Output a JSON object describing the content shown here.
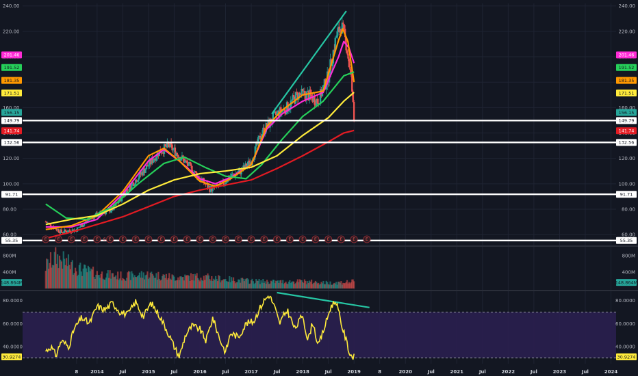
{
  "colors": {
    "background": "#131722",
    "grid": "#1f2433",
    "candle_up": "#26a69a",
    "candle_down": "#ef5350",
    "ma_magenta": "#ff2bd6",
    "ma_orange": "#ff9800",
    "ma_green": "#26d05a",
    "ma_yellow": "#ffeb3b",
    "ma_red": "#e31b23",
    "trendline": "#26c6a4",
    "hline": "#ffffff",
    "rsi_line": "#ffeb3b",
    "rsi_band": "#2a1f4f"
  },
  "chart_data": [
    {
      "type": "candlestick",
      "name": "price",
      "y_ticks": [
        "240.00",
        "220.00",
        "200.00",
        "180.00",
        "160.00",
        "140.00",
        "120.00",
        "100.00",
        "80.00",
        "60.00"
      ],
      "ylim": [
        52,
        242
      ],
      "grid": true,
      "x_ticks": [
        "8",
        "2014",
        "Jul",
        "2015",
        "Jul",
        "2016",
        "Jul",
        "2017",
        "Jul",
        "2018",
        "Jul",
        "2019",
        "8",
        "2020",
        "Jul",
        "2021",
        "Jul",
        "2022",
        "Jul",
        "2023",
        "Jul",
        "2024"
      ],
      "close_anchors": [
        [
          2013.0,
          70
        ],
        [
          2013.3,
          62
        ],
        [
          2013.6,
          64
        ],
        [
          2013.9,
          74
        ],
        [
          2014.3,
          80
        ],
        [
          2014.6,
          96
        ],
        [
          2014.9,
          110
        ],
        [
          2015.2,
          125
        ],
        [
          2015.4,
          130
        ],
        [
          2015.7,
          118
        ],
        [
          2016.0,
          104
        ],
        [
          2016.2,
          96
        ],
        [
          2016.4,
          98
        ],
        [
          2016.6,
          106
        ],
        [
          2016.8,
          110
        ],
        [
          2017.0,
          118
        ],
        [
          2017.2,
          140
        ],
        [
          2017.4,
          150
        ],
        [
          2017.5,
          155
        ],
        [
          2017.7,
          160
        ],
        [
          2017.9,
          170
        ],
        [
          2018.1,
          170
        ],
        [
          2018.3,
          165
        ],
        [
          2018.5,
          185
        ],
        [
          2018.65,
          215
        ],
        [
          2018.75,
          225
        ],
        [
          2018.85,
          210
        ],
        [
          2018.95,
          180
        ],
        [
          2019.0,
          150
        ]
      ],
      "moving_averages": [
        {
          "color": "ma_magenta",
          "points": [
            [
              2013.0,
              66
            ],
            [
              2013.5,
              66
            ],
            [
              2014.0,
              72
            ],
            [
              2014.5,
              92
            ],
            [
              2015.0,
              118
            ],
            [
              2015.3,
              127
            ],
            [
              2015.6,
              118
            ],
            [
              2016.0,
              104
            ],
            [
              2016.3,
              100
            ],
            [
              2016.6,
              105
            ],
            [
              2017.0,
              115
            ],
            [
              2017.3,
              143
            ],
            [
              2017.6,
              155
            ],
            [
              2018.0,
              165
            ],
            [
              2018.4,
              172
            ],
            [
              2018.7,
              200
            ],
            [
              2018.8,
              212
            ],
            [
              2018.9,
              207
            ],
            [
              2019.0,
              195
            ]
          ]
        },
        {
          "color": "ma_orange",
          "points": [
            [
              2013.0,
              64
            ],
            [
              2013.5,
              67
            ],
            [
              2014.0,
              75
            ],
            [
              2014.5,
              94
            ],
            [
              2015.0,
              122
            ],
            [
              2015.3,
              128
            ],
            [
              2015.6,
              118
            ],
            [
              2016.0,
              102
            ],
            [
              2016.3,
              98
            ],
            [
              2016.6,
              104
            ],
            [
              2017.0,
              115
            ],
            [
              2017.3,
              145
            ],
            [
              2017.6,
              158
            ],
            [
              2018.0,
              170
            ],
            [
              2018.4,
              173
            ],
            [
              2018.7,
              213
            ],
            [
              2018.78,
              222
            ],
            [
              2018.88,
              212
            ],
            [
              2019.0,
              180
            ]
          ]
        },
        {
          "color": "ma_green",
          "points": [
            [
              2013.0,
              84
            ],
            [
              2013.4,
              73
            ],
            [
              2013.8,
              72
            ],
            [
              2014.3,
              82
            ],
            [
              2014.8,
              100
            ],
            [
              2015.3,
              116
            ],
            [
              2015.7,
              121
            ],
            [
              2016.1,
              113
            ],
            [
              2016.5,
              106
            ],
            [
              2016.9,
              104
            ],
            [
              2017.2,
              115
            ],
            [
              2017.6,
              135
            ],
            [
              2018.0,
              153
            ],
            [
              2018.4,
              165
            ],
            [
              2018.8,
              185
            ],
            [
              2019.0,
              188
            ]
          ]
        },
        {
          "color": "ma_yellow",
          "points": [
            [
              2013.0,
              68
            ],
            [
              2013.5,
              72
            ],
            [
              2014.0,
              75
            ],
            [
              2014.5,
              84
            ],
            [
              2015.0,
              95
            ],
            [
              2015.5,
              103
            ],
            [
              2016.0,
              108
            ],
            [
              2016.5,
              110
            ],
            [
              2017.0,
              113
            ],
            [
              2017.5,
              122
            ],
            [
              2018.0,
              138
            ],
            [
              2018.5,
              152
            ],
            [
              2018.8,
              165
            ],
            [
              2019.0,
              172
            ]
          ]
        },
        {
          "color": "ma_red",
          "points": [
            [
              2013.0,
              57
            ],
            [
              2013.5,
              62
            ],
            [
              2014.0,
              68
            ],
            [
              2014.5,
              74
            ],
            [
              2015.0,
              82
            ],
            [
              2015.5,
              90
            ],
            [
              2016.0,
              95
            ],
            [
              2016.5,
              99
            ],
            [
              2017.0,
              103
            ],
            [
              2017.5,
              112
            ],
            [
              2018.0,
              122
            ],
            [
              2018.5,
              133
            ],
            [
              2018.8,
              140
            ],
            [
              2019.0,
              142
            ]
          ]
        }
      ],
      "horizontal_lines": [
        149.79,
        132.56,
        91.71,
        55.35
      ],
      "trendline": [
        [
          2017.4,
          155
        ],
        [
          2018.85,
          236
        ]
      ],
      "right_tags": [
        {
          "value": 201.46,
          "label": "201.46",
          "color": "ma_magenta"
        },
        {
          "value": 191.52,
          "label": "191.52",
          "color": "ma_green"
        },
        {
          "value": 181.35,
          "label": "181.35",
          "color": "ma_orange"
        },
        {
          "value": 171.51,
          "label": "171.51",
          "color": "ma_yellow"
        },
        {
          "value": 156.15,
          "label": "156.15",
          "color": "candle_up"
        },
        {
          "value": 149.79,
          "label": "149.79",
          "color": "hline"
        },
        {
          "value": 141.74,
          "label": "141.74",
          "color": "ma_red"
        },
        {
          "value": 132.56,
          "label": "132.56",
          "color": "hline"
        },
        {
          "value": 91.71,
          "label": "91.71",
          "color": "hline"
        },
        {
          "value": 55.35,
          "label": "55.35",
          "color": "hline"
        }
      ],
      "earnings_markers": [
        "E",
        "E",
        "E",
        "E",
        "E",
        "E",
        "E",
        "E",
        "E",
        "E",
        "E",
        "E",
        "E",
        "E",
        "E",
        "E",
        "E",
        "E",
        "E",
        "E",
        "E",
        "E",
        "E",
        "E",
        "E",
        "E"
      ],
      "split_marker": "S"
    },
    {
      "type": "bar",
      "name": "volume",
      "y_ticks": [
        "800M",
        "400M"
      ],
      "ylim": [
        0,
        1000
      ],
      "last_value": 148.864,
      "last_label": "148.864M",
      "volume_profile": [
        [
          2013.0,
          600
        ],
        [
          2013.2,
          850
        ],
        [
          2013.6,
          550
        ],
        [
          2014.0,
          400
        ],
        [
          2014.5,
          330
        ],
        [
          2015.0,
          380
        ],
        [
          2015.5,
          300
        ],
        [
          2016.0,
          320
        ],
        [
          2016.5,
          250
        ],
        [
          2017.0,
          200
        ],
        [
          2017.5,
          180
        ],
        [
          2018.0,
          190
        ],
        [
          2018.5,
          150
        ],
        [
          2019.0,
          180
        ]
      ]
    },
    {
      "type": "line",
      "name": "rsi",
      "y_ticks": [
        "80.0000",
        "60.0000",
        "40.0000"
      ],
      "ylim": [
        25,
        87
      ],
      "bands": [
        70,
        30
      ],
      "last_label": "30.9274",
      "trendline": [
        [
          2017.5,
          87
        ],
        [
          2019.3,
          74
        ]
      ],
      "rsi_anchors": [
        [
          2013.0,
          36
        ],
        [
          2013.1,
          40
        ],
        [
          2013.2,
          32
        ],
        [
          2013.3,
          45
        ],
        [
          2013.45,
          40
        ],
        [
          2013.55,
          55
        ],
        [
          2013.7,
          65
        ],
        [
          2013.85,
          60
        ],
        [
          2014.0,
          75
        ],
        [
          2014.15,
          72
        ],
        [
          2014.3,
          78
        ],
        [
          2014.45,
          70
        ],
        [
          2014.6,
          68
        ],
        [
          2014.75,
          79
        ],
        [
          2014.9,
          66
        ],
        [
          2015.05,
          78
        ],
        [
          2015.2,
          68
        ],
        [
          2015.35,
          55
        ],
        [
          2015.5,
          40
        ],
        [
          2015.6,
          31
        ],
        [
          2015.72,
          50
        ],
        [
          2015.85,
          58
        ],
        [
          2016.0,
          55
        ],
        [
          2016.12,
          45
        ],
        [
          2016.25,
          65
        ],
        [
          2016.4,
          45
        ],
        [
          2016.5,
          35
        ],
        [
          2016.6,
          52
        ],
        [
          2016.75,
          48
        ],
        [
          2016.9,
          60
        ],
        [
          2017.05,
          62
        ],
        [
          2017.15,
          72
        ],
        [
          2017.25,
          80
        ],
        [
          2017.35,
          85
        ],
        [
          2017.45,
          75
        ],
        [
          2017.55,
          60
        ],
        [
          2017.7,
          72
        ],
        [
          2017.85,
          55
        ],
        [
          2018.0,
          68
        ],
        [
          2018.1,
          45
        ],
        [
          2018.2,
          62
        ],
        [
          2018.3,
          40
        ],
        [
          2018.45,
          60
        ],
        [
          2018.55,
          75
        ],
        [
          2018.65,
          80
        ],
        [
          2018.75,
          60
        ],
        [
          2018.85,
          45
        ],
        [
          2018.92,
          33
        ],
        [
          2019.0,
          31
        ]
      ]
    }
  ]
}
